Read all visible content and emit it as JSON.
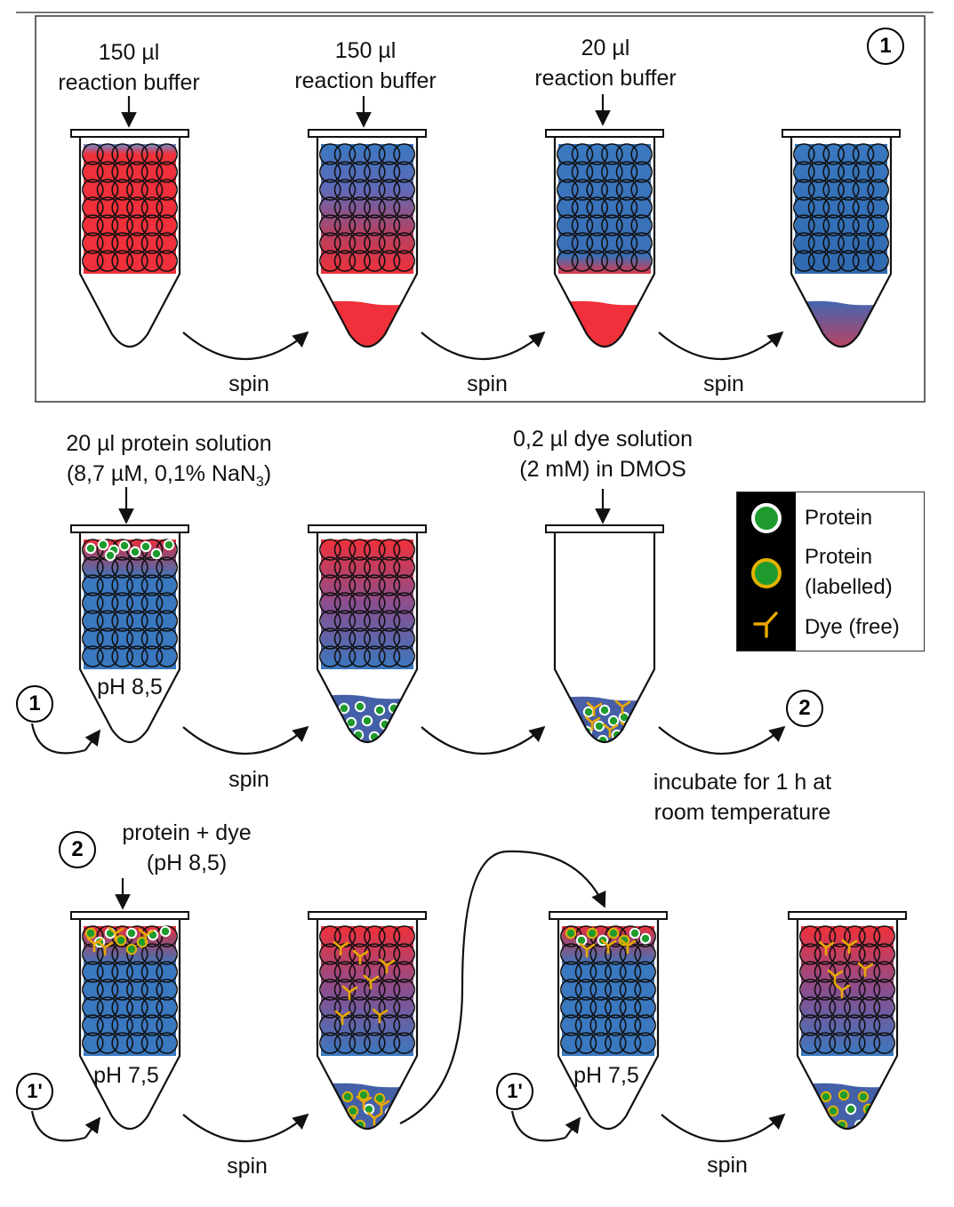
{
  "panel1": {
    "badge": "1",
    "additions": [
      {
        "amount": "150 µl",
        "what": "reaction buffer"
      },
      {
        "amount": "150 µl",
        "what": "reaction buffer"
      },
      {
        "amount": "20 µl",
        "what": "reaction buffer"
      }
    ],
    "spin_labels": [
      "spin",
      "spin",
      "spin"
    ]
  },
  "panel2": {
    "protein_line1": "20 µl protein solution",
    "protein_line2": "(8,7 µM, 0,1% NaN",
    "protein_sub": "3",
    "protein_close": ")",
    "dye_line1": "0,2 µl dye solution",
    "dye_line2": "(2 mM) in DMOS",
    "ph_label": "pH 8,5",
    "ref_badge": "1",
    "next_badge": "2",
    "spin_label": "spin",
    "incubate_line1": "incubate for 1 h at",
    "incubate_line2": "room temperature"
  },
  "legend": {
    "protein": "Protein",
    "protein_labelled_1": "Protein",
    "protein_labelled_2": "(labelled)",
    "dye_free": "Dye (free)"
  },
  "panel3": {
    "badge": "2",
    "line1": "protein + dye",
    "line2": "(pH 8,5)",
    "ph_label_a": "pH 7,5",
    "ph_label_b": "pH 7,5",
    "ref_badge_a": "1'",
    "ref_badge_b": "1'",
    "spin_labels": [
      "spin",
      "spin"
    ]
  },
  "colors": {
    "red": "#f0303a",
    "blue": "#3a78c0",
    "protein_green": "#1f9b2e",
    "label_ring": "#e3b200",
    "dye": "#e8a800"
  }
}
